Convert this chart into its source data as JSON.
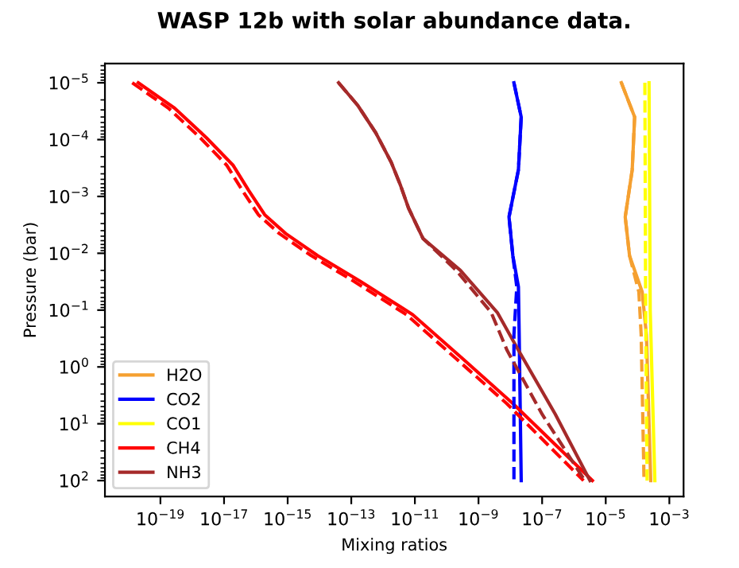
{
  "chart_data": {
    "type": "line",
    "title": "WASP 12b with solar abundance data.",
    "xlabel": "Mixing ratios",
    "ylabel": "Pressure (bar)",
    "log": "xy",
    "grid": false,
    "legend": "bottom left",
    "xlim": [
      1.8e-21,
      0.0028
    ],
    "ylim": [
      190,
      4.6e-06
    ],
    "xticks": [
      {
        "value": 1e-19,
        "label": "10$^{−19}$"
      },
      {
        "value": 1e-17,
        "label": "10$^{−17}$"
      },
      {
        "value": 1e-15,
        "label": "10$^{−15}$"
      },
      {
        "value": 1e-13,
        "label": "10$^{−13}$"
      },
      {
        "value": 1e-11,
        "label": "10$^{−11}$"
      },
      {
        "value": 1e-09,
        "label": "10$^{−9}$"
      },
      {
        "value": 1e-07,
        "label": "10$^{−7}$"
      },
      {
        "value": 1e-05,
        "label": "10$^{−5}$"
      },
      {
        "value": 0.001,
        "label": "10$^{−3}$"
      }
    ],
    "yticks": [
      {
        "value": 1e-05,
        "label": "10$^{−5}$"
      },
      {
        "value": 0.0001,
        "label": "10$^{−4}$"
      },
      {
        "value": 0.001,
        "label": "10$^{−3}$"
      },
      {
        "value": 0.01,
        "label": "10$^{−2}$"
      },
      {
        "value": 0.1,
        "label": "10$^{−1}$"
      },
      {
        "value": 1,
        "label": "10$^{0}$"
      },
      {
        "value": 10,
        "label": "10$^{1}$"
      },
      {
        "value": 100,
        "label": "10$^{2}$"
      }
    ],
    "series": [
      {
        "name": "H2O",
        "color": "#f5a030",
        "line_style": "solid",
        "x": [
          3.1e-05,
          8.1e-05,
          6.8e-05,
          4.1e-05,
          5.6e-05,
          0.00014,
          0.00019,
          0.00026
        ],
        "values": [
          1e-05,
          4e-05,
          0.00034,
          0.0023,
          0.011,
          0.048,
          0.27,
          100
        ]
      },
      {
        "name": "CO2",
        "color": "#0000ff",
        "line_style": "solid",
        "x": [
          1.3e-08,
          2.2e-08,
          1.8e-08,
          9.1e-09,
          1.2e-08,
          1.8e-08,
          1.9e-08,
          2.2e-08
        ],
        "values": [
          1e-05,
          4e-05,
          0.00034,
          0.0023,
          0.011,
          0.039,
          0.27,
          100
        ]
      },
      {
        "name": "CO1",
        "color": "#ffff00",
        "line_style": "solid",
        "x": [
          0.00023,
          0.00025,
          0.00035
        ],
        "values": [
          1e-05,
          0.1,
          100
        ]
      },
      {
        "name": "CH4",
        "color": "#ff0000",
        "line_style": "solid",
        "x": [
          2e-20,
          2.8e-19,
          2.8e-18,
          1.9e-17,
          6e-17,
          1.9e-16,
          8.7e-16,
          8.7e-15,
          1.9e-13,
          8.5e-12,
          3.2e-10,
          1.2e-08,
          3.8e-06
        ],
        "values": [
          1e-05,
          2.8e-05,
          9.3e-05,
          0.00028,
          0.00079,
          0.0021,
          0.0045,
          0.011,
          0.031,
          0.12,
          0.72,
          4.4,
          100
        ]
      },
      {
        "name": "NH3",
        "color": "#a52a2a",
        "line_style": "solid",
        "x": [
          4e-14,
          1.6e-13,
          5.9e-13,
          1.8e-12,
          3.5e-12,
          6.3e-12,
          1.8e-11,
          2.7e-10,
          3.9e-09,
          1.8e-08,
          2.6e-07,
          3.2e-06
        ],
        "values": [
          1e-05,
          2.5e-05,
          7.6e-05,
          0.00025,
          0.00063,
          0.0016,
          0.0055,
          0.02,
          0.11,
          0.51,
          6.8,
          100
        ]
      },
      {
        "color": "#f5a030",
        "line_style": "dashed",
        "x": [
          3.1e-05,
          8.1e-05,
          6.8e-05,
          4.1e-05,
          5.6e-05,
          0.00011,
          0.00013,
          0.00016
        ],
        "values": [
          1e-05,
          4e-05,
          0.00034,
          0.0023,
          0.011,
          0.048,
          0.27,
          100
        ]
      },
      {
        "color": "#0000ff",
        "line_style": "dashed",
        "x": [
          1.3e-08,
          2.2e-08,
          1.8e-08,
          9.1e-09,
          1.2e-08,
          1.6e-08,
          1.3e-08,
          1.3e-08
        ],
        "values": [
          1e-05,
          4e-05,
          0.00034,
          0.0023,
          0.011,
          0.039,
          0.27,
          100
        ]
      },
      {
        "color": "#ffff00",
        "line_style": "dashed",
        "x": [
          0.00017,
          0.00018,
          0.0002
        ],
        "values": [
          1e-05,
          0.1,
          100
        ]
      },
      {
        "color": "#ff0000",
        "line_style": "dashed",
        "x": [
          1.3e-20,
          1.8e-19,
          1.8e-18,
          1.2e-17,
          3.8e-17,
          1.2e-16,
          5.5e-16,
          5.5e-15,
          1.2e-13,
          5.4e-12,
          2e-10,
          7.7e-09,
          2e-06
        ],
        "values": [
          1e-05,
          2.8e-05,
          9.3e-05,
          0.00028,
          0.00079,
          0.0021,
          0.0045,
          0.011,
          0.031,
          0.12,
          0.72,
          4.4,
          100
        ]
      },
      {
        "color": "#a52a2a",
        "line_style": "dashed",
        "x": [
          4e-14,
          1.6e-13,
          5.9e-13,
          1.8e-12,
          3.5e-12,
          6.3e-12,
          1.8e-11,
          2e-10,
          2.5e-09,
          7.9e-09,
          1e-07,
          2.2e-06
        ],
        "values": [
          1e-05,
          2.5e-05,
          7.6e-05,
          0.00025,
          0.00063,
          0.0016,
          0.0055,
          0.02,
          0.11,
          0.51,
          6.8,
          100
        ]
      }
    ]
  }
}
